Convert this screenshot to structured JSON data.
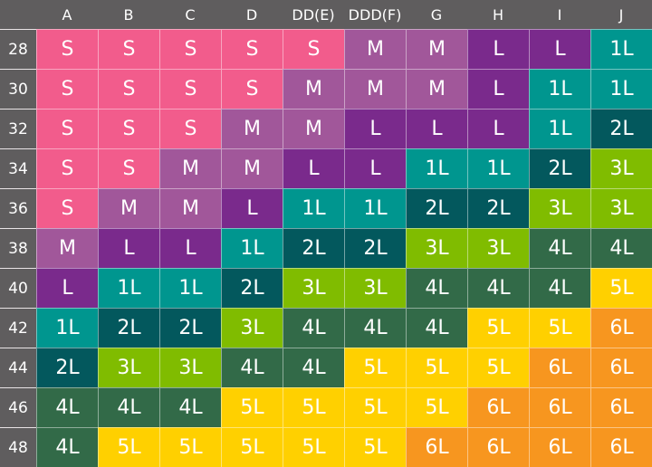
{
  "corner": "",
  "columns": [
    "A",
    "B",
    "C",
    "D",
    "DD(E)",
    "DDD(F)",
    "G",
    "H",
    "I",
    "J"
  ],
  "rows": [
    {
      "band": "28",
      "sizes": [
        "S",
        "S",
        "S",
        "S",
        "S",
        "M",
        "M",
        "L",
        "L",
        "1L"
      ]
    },
    {
      "band": "30",
      "sizes": [
        "S",
        "S",
        "S",
        "S",
        "M",
        "M",
        "M",
        "L",
        "1L",
        "1L"
      ]
    },
    {
      "band": "32",
      "sizes": [
        "S",
        "S",
        "S",
        "M",
        "M",
        "L",
        "L",
        "L",
        "1L",
        "2L"
      ]
    },
    {
      "band": "34",
      "sizes": [
        "S",
        "S",
        "M",
        "M",
        "L",
        "L",
        "1L",
        "1L",
        "2L",
        "3L"
      ]
    },
    {
      "band": "36",
      "sizes": [
        "S",
        "M",
        "M",
        "L",
        "1L",
        "1L",
        "2L",
        "2L",
        "3L",
        "3L"
      ]
    },
    {
      "band": "38",
      "sizes": [
        "M",
        "L",
        "L",
        "1L",
        "2L",
        "2L",
        "3L",
        "3L",
        "4L",
        "4L"
      ]
    },
    {
      "band": "40",
      "sizes": [
        "L",
        "1L",
        "1L",
        "2L",
        "3L",
        "3L",
        "4L",
        "4L",
        "4L",
        "5L"
      ]
    },
    {
      "band": "42",
      "sizes": [
        "1L",
        "2L",
        "2L",
        "3L",
        "4L",
        "4L",
        "4L",
        "5L",
        "5L",
        "6L"
      ]
    },
    {
      "band": "44",
      "sizes": [
        "2L",
        "3L",
        "3L",
        "4L",
        "4L",
        "5L",
        "5L",
        "5L",
        "6L",
        "6L"
      ]
    },
    {
      "band": "46",
      "sizes": [
        "4L",
        "4L",
        "4L",
        "5L",
        "5L",
        "5L",
        "5L",
        "6L",
        "6L",
        "6L"
      ]
    },
    {
      "band": "48",
      "sizes": [
        "4L",
        "5L",
        "5L",
        "5L",
        "5L",
        "5L",
        "6L",
        "6L",
        "6L",
        "6L"
      ]
    }
  ],
  "size_colors": {
    "S": "#f25c8c",
    "M": "#a1579a",
    "L": "#7a2a8c",
    "1L": "#00968f",
    "2L": "#03585d",
    "3L": "#80bc00",
    "4L": "#326a48",
    "5L": "#ffd000",
    "6L": "#f7961f"
  },
  "header_color": "#5f5d5e"
}
